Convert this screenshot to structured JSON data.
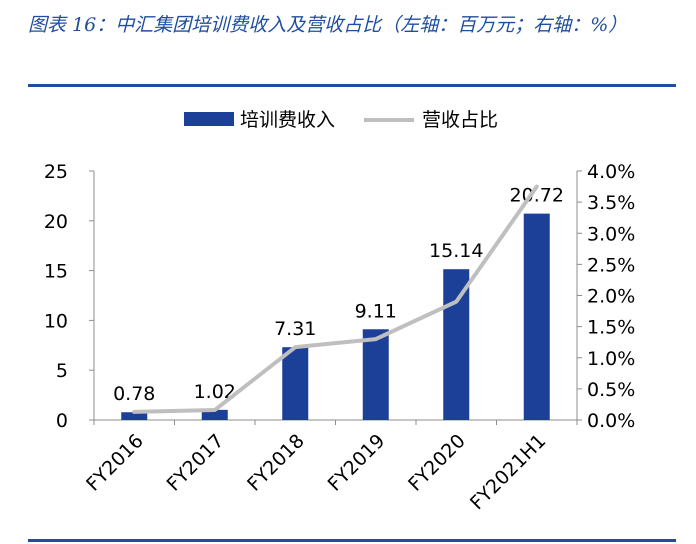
{
  "figure": {
    "title": "图表 16：中汇集团培训费收入及营收占比（左轴：百万元；右轴：%）"
  },
  "colors": {
    "title": "#1f4e9e",
    "bar": "#1c3f98",
    "line": "#bfbfbf",
    "axis": "#8c8c8c"
  },
  "chart_data": {
    "type": "bar",
    "title": "",
    "categories": [
      "FY2016",
      "FY2017",
      "FY2018",
      "FY2019",
      "FY2020",
      "FY2021H1"
    ],
    "series": [
      {
        "name": "培训费收入",
        "type": "bar",
        "axis": "left",
        "values": [
          0.78,
          1.02,
          7.31,
          9.11,
          15.14,
          20.72
        ]
      },
      {
        "name": "营收占比",
        "type": "line",
        "axis": "right",
        "values": [
          0.0013,
          0.0016,
          0.0117,
          0.013,
          0.019,
          0.0375
        ]
      }
    ],
    "data_labels": [
      "0.78",
      "1.02",
      "7.31",
      "9.11",
      "15.14",
      "20.72"
    ],
    "ylim": [
      0,
      25
    ],
    "y_ticks": [
      "0",
      "5",
      "10",
      "15",
      "20",
      "25"
    ],
    "y2lim": [
      0,
      0.04
    ],
    "y2_ticks": [
      "0.0%",
      "0.5%",
      "1.0%",
      "1.5%",
      "2.0%",
      "2.5%",
      "3.0%",
      "3.5%",
      "4.0%"
    ],
    "legend_position": "top-center",
    "grid": false
  }
}
